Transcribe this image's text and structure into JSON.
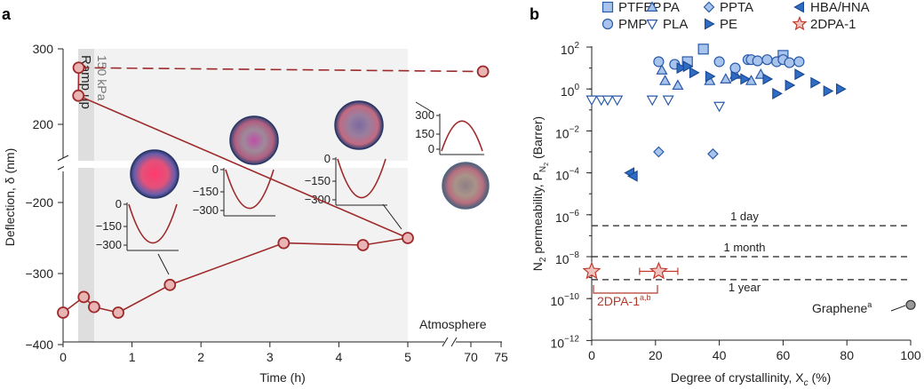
{
  "panel_a": {
    "label": "a",
    "xlabel": "Time (h)",
    "ylabel": "Deflection, δ (nm)",
    "ramp_text_1": "Ramp up",
    "ramp_text_2": "150 kPa",
    "atmosphere_label": "Atmosphere",
    "x_ticks": [
      "0",
      "1",
      "2",
      "3",
      "4",
      "5",
      "70",
      "75"
    ],
    "y_ticks_upper": [
      "200",
      "300"
    ],
    "y_ticks_lower": [
      "−400",
      "−300",
      "−200"
    ],
    "insets": [
      {
        "ticks": [
          "0",
          "−150",
          "−300"
        ]
      },
      {
        "ticks": [
          "0",
          "−150",
          "−300"
        ]
      },
      {
        "ticks": [
          "0",
          "−150",
          "−300"
        ]
      },
      {
        "ticks": [
          "300",
          "150",
          "0"
        ]
      }
    ]
  },
  "panel_b": {
    "label": "b",
    "xlabel": "Degree of crystallinity, X",
    "xlabel_sub": "c",
    "xlabel_unit": " (%)",
    "ylabel": "N",
    "ylabel_sub": "2",
    "ylabel_rest": " permeability, P",
    "ylabel_sub2": "N",
    "ylabel_sub3": "2",
    "ylabel_unit": " (Barrer)",
    "x_ticks": [
      "0",
      "20",
      "40",
      "60",
      "80",
      "100"
    ],
    "y_ticks": [
      "10",
      "10",
      "10",
      "10",
      "10",
      "10",
      "10",
      "10"
    ],
    "y_tick_exps": [
      "2",
      "0",
      "−2",
      "−4",
      "−6",
      "−8",
      "−10",
      "−12"
    ],
    "lines": [
      {
        "label": "1 day"
      },
      {
        "label": "1 month"
      },
      {
        "label": "1 year"
      }
    ],
    "graphene_label": "Graphene",
    "graphene_sup": "a",
    "twodpa_label": "2DPA-1",
    "twodpa_sup": "a,b",
    "legend": [
      {
        "name": "PTFEP",
        "marker": "square"
      },
      {
        "name": "PA",
        "marker": "triangle-up"
      },
      {
        "name": "PPTA",
        "marker": "diamond"
      },
      {
        "name": "HBA/HNA",
        "marker": "triangle-left"
      },
      {
        "name": "PMP",
        "marker": "circle"
      },
      {
        "name": "PLA",
        "marker": "triangle-down"
      },
      {
        "name": "PE",
        "marker": "triangle-right"
      },
      {
        "name": "2DPA-1",
        "marker": "star"
      }
    ]
  },
  "colors": {
    "deflection_line": "#9e2a2b",
    "marker_fill": "#e8b4b4",
    "polymer_fill": "#2f6dc4",
    "polymer_light": "#a9c4ec",
    "twodpa": "#c0392b",
    "graphene": "#999999"
  },
  "chart_data": [
    {
      "type": "line",
      "title": "",
      "xlabel": "Time (h)",
      "ylabel": "Deflection, δ (nm)",
      "x": [
        0,
        0.3,
        0.45,
        0.8,
        1.55,
        3.2,
        4.35,
        5.0,
        5.03,
        5.08,
        72
      ],
      "y": [
        -355,
        -333,
        -347,
        -355,
        -316,
        -257,
        -260,
        -250,
        238,
        275,
        270
      ],
      "x_break": [
        5,
        70
      ],
      "y_break": [
        -150,
        150
      ],
      "xlim": [
        0,
        75
      ],
      "ylim": [
        -400,
        300
      ]
    },
    {
      "type": "scatter",
      "xlabel": "Degree of crystallinity, Xc (%)",
      "ylabel": "N2 permeability, PN2 (Barrer)",
      "y_scale": "log",
      "xlim": [
        0,
        100
      ],
      "ylim": [
        1e-12,
        100
      ],
      "series": [
        {
          "name": "PTFEP",
          "points": [
            [
              35,
              80
            ],
            [
              30,
              20
            ],
            [
              60,
              40
            ]
          ]
        },
        {
          "name": "PA",
          "points": [
            [
              22,
              8
            ],
            [
              23,
              2.5
            ],
            [
              27,
              1.5
            ],
            [
              37,
              2.5
            ],
            [
              42,
              3
            ],
            [
              45,
              5
            ],
            [
              50,
              2.5
            ],
            [
              53,
              5
            ]
          ]
        },
        {
          "name": "PPTA",
          "points": [
            [
              21,
              0.001
            ],
            [
              38,
              0.0008
            ]
          ]
        },
        {
          "name": "HBA/HNA",
          "points": [
            [
              12,
              0.0001
            ],
            [
              13,
              7e-05
            ]
          ]
        },
        {
          "name": "PMP",
          "points": [
            [
              21,
              20
            ],
            [
              26,
              15
            ],
            [
              40,
              20
            ],
            [
              45,
              10
            ],
            [
              49,
              25
            ],
            [
              50,
              25
            ],
            [
              52,
              22
            ],
            [
              55,
              25
            ],
            [
              58,
              20
            ],
            [
              60,
              25
            ],
            [
              62,
              18
            ],
            [
              65,
              20
            ]
          ]
        },
        {
          "name": "PLA",
          "points": [
            [
              0,
              0.3
            ],
            [
              3,
              0.3
            ],
            [
              5,
              0.3
            ],
            [
              8,
              0.3
            ],
            [
              19,
              0.3
            ],
            [
              24,
              0.3
            ],
            [
              40,
              0.15
            ]
          ]
        },
        {
          "name": "PE",
          "points": [
            [
              28,
              10
            ],
            [
              30,
              12
            ],
            [
              32,
              6
            ],
            [
              37,
              4
            ],
            [
              45,
              4
            ],
            [
              48,
              3
            ],
            [
              55,
              3
            ],
            [
              58,
              0.6
            ],
            [
              62,
              1.5
            ],
            [
              65,
              5
            ],
            [
              70,
              2
            ],
            [
              74,
              0.8
            ],
            [
              78,
              1
            ]
          ]
        },
        {
          "name": "2DPA-1",
          "points": [
            [
              0,
              2e-09
            ],
            [
              21,
              2e-09
            ]
          ],
          "x_err": [
            [
              0,
              0
            ],
            [
              6,
              6
            ]
          ]
        },
        {
          "name": "Graphene",
          "points": [
            [
              100,
              5e-11
            ]
          ]
        }
      ],
      "reference_lines": [
        {
          "label": "1 day",
          "y": 3e-07
        },
        {
          "label": "1 month",
          "y": 1e-08
        },
        {
          "label": "1 year",
          "y": 8e-10
        }
      ]
    }
  ]
}
